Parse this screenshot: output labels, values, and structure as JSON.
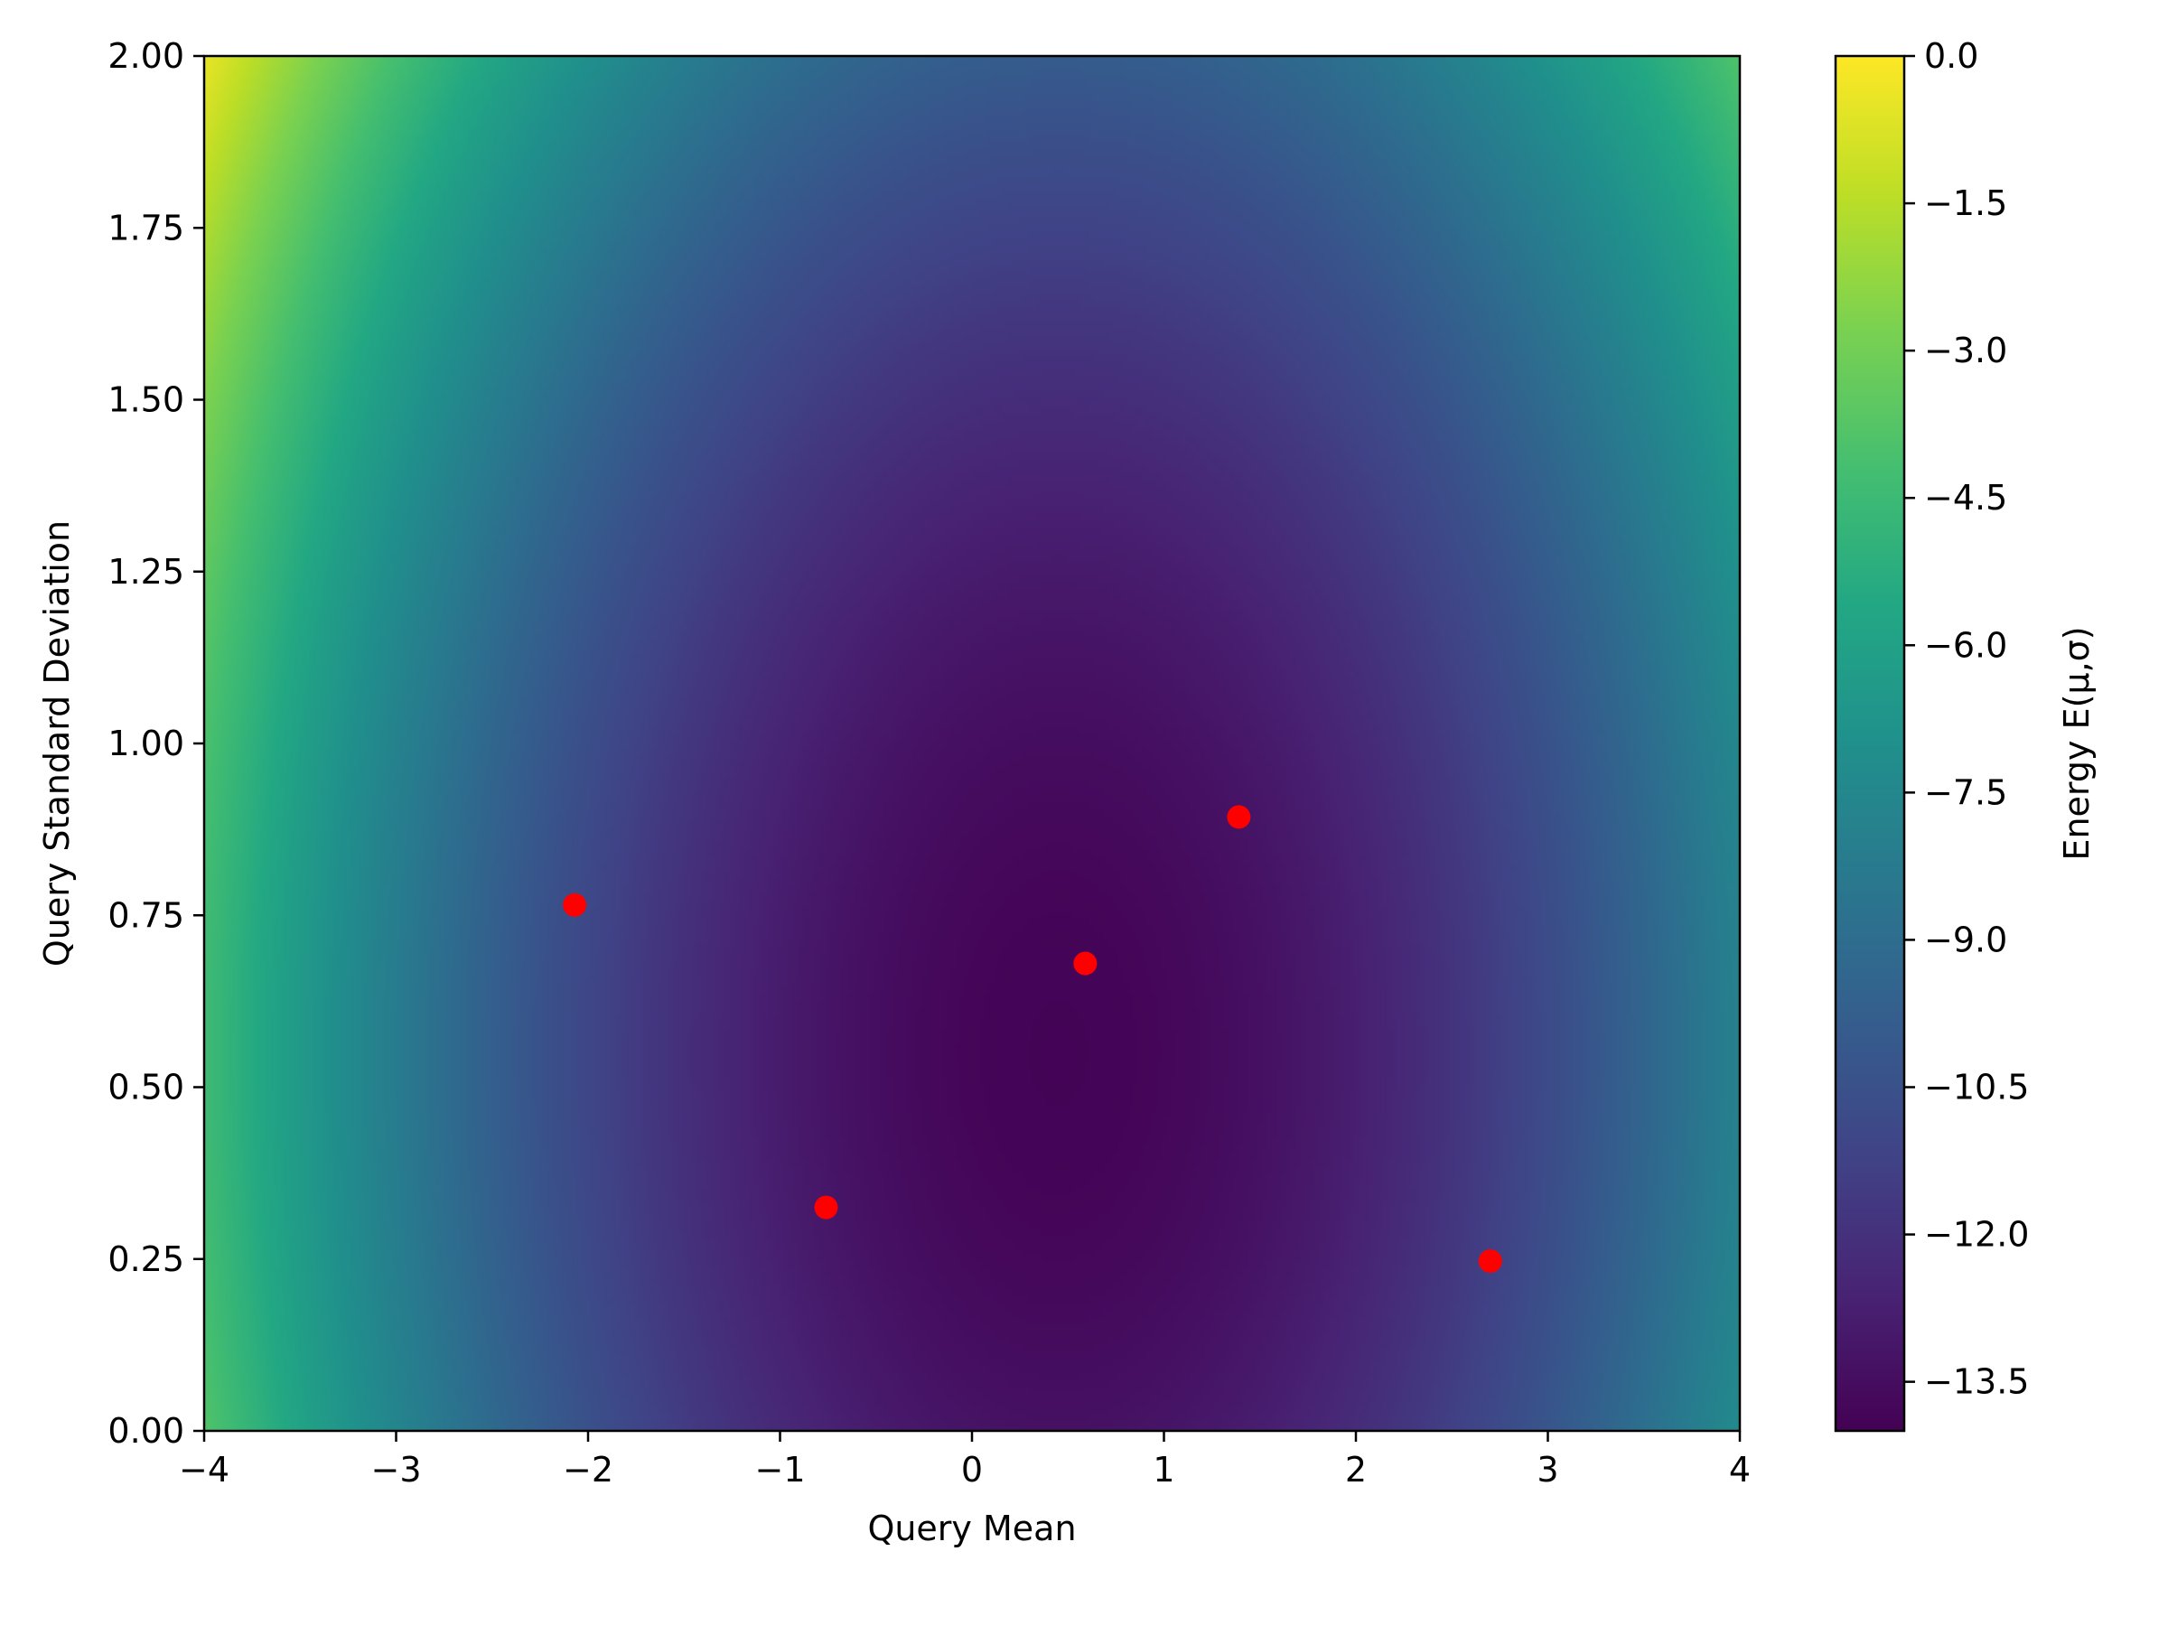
{
  "chart_data": {
    "type": "heatmap",
    "title": "",
    "xlabel": "Query Mean",
    "ylabel": "Query Standard Deviation",
    "xlim": [
      -4,
      4
    ],
    "ylim": [
      0,
      2
    ],
    "x_ticks": [
      "−4",
      "−3",
      "−2",
      "−1",
      "0",
      "1",
      "2",
      "3",
      "4"
    ],
    "y_ticks": [
      "0.00",
      "0.25",
      "0.50",
      "0.75",
      "1.00",
      "1.25",
      "1.50",
      "1.75",
      "2.00"
    ],
    "colorscale": "viridis",
    "colorbar": {
      "label": "Energy E(μ,σ)",
      "range": [
        -14.0,
        0.0
      ],
      "ticks": [
        0.0,
        -1.5,
        -3.0,
        -4.5,
        -6.0,
        -7.5,
        -9.0,
        -10.5,
        -12.0,
        -13.5
      ],
      "tick_labels": [
        "0.0",
        "−1.5",
        "−3.0",
        "−4.5",
        "−6.0",
        "−7.5",
        "−9.0",
        "−10.5",
        "−12.0",
        "−13.5"
      ]
    },
    "energy_minimum": {
      "mu": 0.45,
      "sigma": 0.55,
      "value": -13.9
    },
    "points": {
      "color": "#ff0000",
      "x": [
        -2.07,
        -0.76,
        0.59,
        1.39,
        2.7
      ],
      "y": [
        0.765,
        0.325,
        0.68,
        0.893,
        0.247
      ]
    }
  }
}
